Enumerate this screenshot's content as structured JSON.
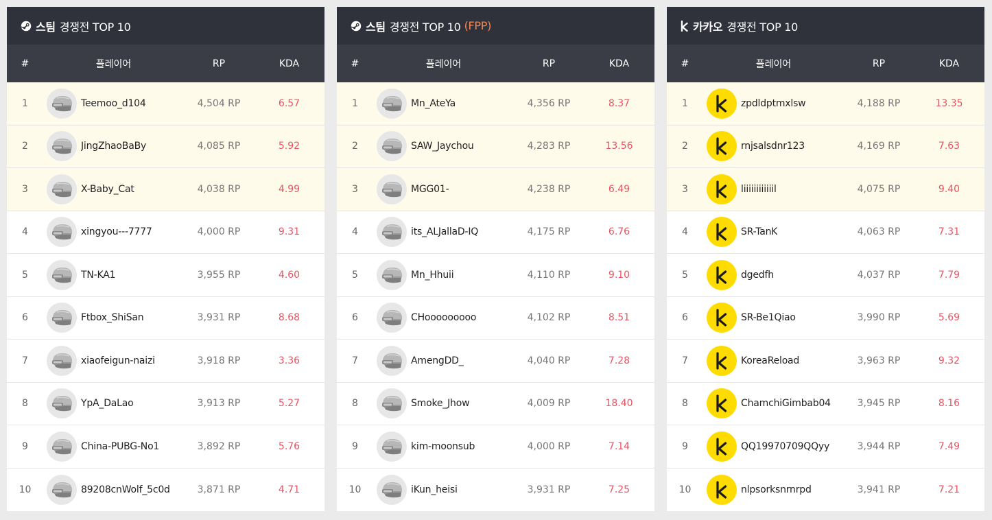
{
  "panels": [
    {
      "brand": "스팀",
      "title_rest": "경쟁전 TOP 10",
      "tag": "",
      "icon": "steam-icon",
      "headers": {
        "rank": "#",
        "player": "플레이어",
        "rp": "RP",
        "kda": "KDA"
      },
      "avatar": "helmet-icon",
      "rows": [
        {
          "rank": "1",
          "name": "Teemoo_d104",
          "rp": "4,504 RP",
          "kda": "6.57"
        },
        {
          "rank": "2",
          "name": "JingZhaoBaBy",
          "rp": "4,085 RP",
          "kda": "5.92"
        },
        {
          "rank": "3",
          "name": "X-Baby_Cat",
          "rp": "4,038 RP",
          "kda": "4.99"
        },
        {
          "rank": "4",
          "name": "xingyou---7777",
          "rp": "4,000 RP",
          "kda": "9.31"
        },
        {
          "rank": "5",
          "name": "TN-KA1",
          "rp": "3,955 RP",
          "kda": "4.60"
        },
        {
          "rank": "6",
          "name": "Ftbox_ShiSan",
          "rp": "3,931 RP",
          "kda": "8.68"
        },
        {
          "rank": "7",
          "name": "xiaofeigun-naizi",
          "rp": "3,918 RP",
          "kda": "3.36"
        },
        {
          "rank": "8",
          "name": "YpA_DaLao",
          "rp": "3,913 RP",
          "kda": "5.27"
        },
        {
          "rank": "9",
          "name": "China-PUBG-No1",
          "rp": "3,892 RP",
          "kda": "5.76"
        },
        {
          "rank": "10",
          "name": "89208cnWolf_5c0d",
          "rp": "3,871 RP",
          "kda": "4.71"
        }
      ]
    },
    {
      "brand": "스팀",
      "title_rest": "경쟁전 TOP 10",
      "tag": "(FPP)",
      "icon": "steam-icon",
      "headers": {
        "rank": "#",
        "player": "플레이어",
        "rp": "RP",
        "kda": "KDA"
      },
      "avatar": "helmet-icon",
      "rows": [
        {
          "rank": "1",
          "name": "Mn_AteYa",
          "rp": "4,356 RP",
          "kda": "8.37"
        },
        {
          "rank": "2",
          "name": "SAW_Jaychou",
          "rp": "4,283 RP",
          "kda": "13.56"
        },
        {
          "rank": "3",
          "name": "MGG01-",
          "rp": "4,238 RP",
          "kda": "6.49"
        },
        {
          "rank": "4",
          "name": "its_ALJallaD-IQ",
          "rp": "4,175 RP",
          "kda": "6.76"
        },
        {
          "rank": "5",
          "name": "Mn_Hhuii",
          "rp": "4,110 RP",
          "kda": "9.10"
        },
        {
          "rank": "6",
          "name": "CHooooooooo",
          "rp": "4,102 RP",
          "kda": "8.51"
        },
        {
          "rank": "7",
          "name": "AmengDD_",
          "rp": "4,040 RP",
          "kda": "7.28"
        },
        {
          "rank": "8",
          "name": "Smoke_Jhow",
          "rp": "4,009 RP",
          "kda": "18.40"
        },
        {
          "rank": "9",
          "name": "kim-moonsub",
          "rp": "4,000 RP",
          "kda": "7.14"
        },
        {
          "rank": "10",
          "name": "iKun_heisi",
          "rp": "3,931 RP",
          "kda": "7.25"
        }
      ]
    },
    {
      "brand": "카카오",
      "title_rest": "경쟁전 TOP 10",
      "tag": "",
      "icon": "kakao-icon",
      "headers": {
        "rank": "#",
        "player": "플레이어",
        "rp": "RP",
        "kda": "KDA"
      },
      "avatar": "kakao-k-icon",
      "rows": [
        {
          "rank": "1",
          "name": "zpdldptmxlsw",
          "rp": "4,188 RP",
          "kda": "13.35"
        },
        {
          "rank": "2",
          "name": "rnjsalsdnr123",
          "rp": "4,169 RP",
          "kda": "7.63"
        },
        {
          "rank": "3",
          "name": "liiiiiiiiiiiil",
          "rp": "4,075 RP",
          "kda": "9.40"
        },
        {
          "rank": "4",
          "name": "SR-TanK",
          "rp": "4,063 RP",
          "kda": "7.31"
        },
        {
          "rank": "5",
          "name": "dgedfh",
          "rp": "4,037 RP",
          "kda": "7.79"
        },
        {
          "rank": "6",
          "name": "SR-Be1Qiao",
          "rp": "3,990 RP",
          "kda": "5.69"
        },
        {
          "rank": "7",
          "name": "KoreaReload",
          "rp": "3,963 RP",
          "kda": "9.32"
        },
        {
          "rank": "8",
          "name": "ChamchiGimbab04",
          "rp": "3,945 RP",
          "kda": "8.16"
        },
        {
          "rank": "9",
          "name": "QQ19970709QQyy",
          "rp": "3,944 RP",
          "kda": "7.49"
        },
        {
          "rank": "10",
          "name": "nlpsorksnrnrpd",
          "rp": "3,941 RP",
          "kda": "7.21"
        }
      ]
    }
  ],
  "colors": {
    "title_bg": "#30323b",
    "header_bg": "#3a3d46",
    "top3_bg": "#fffbea",
    "kda": "#e85363",
    "fpp_tag": "#f4894f",
    "kakao_yellow": "#ffdc00"
  }
}
